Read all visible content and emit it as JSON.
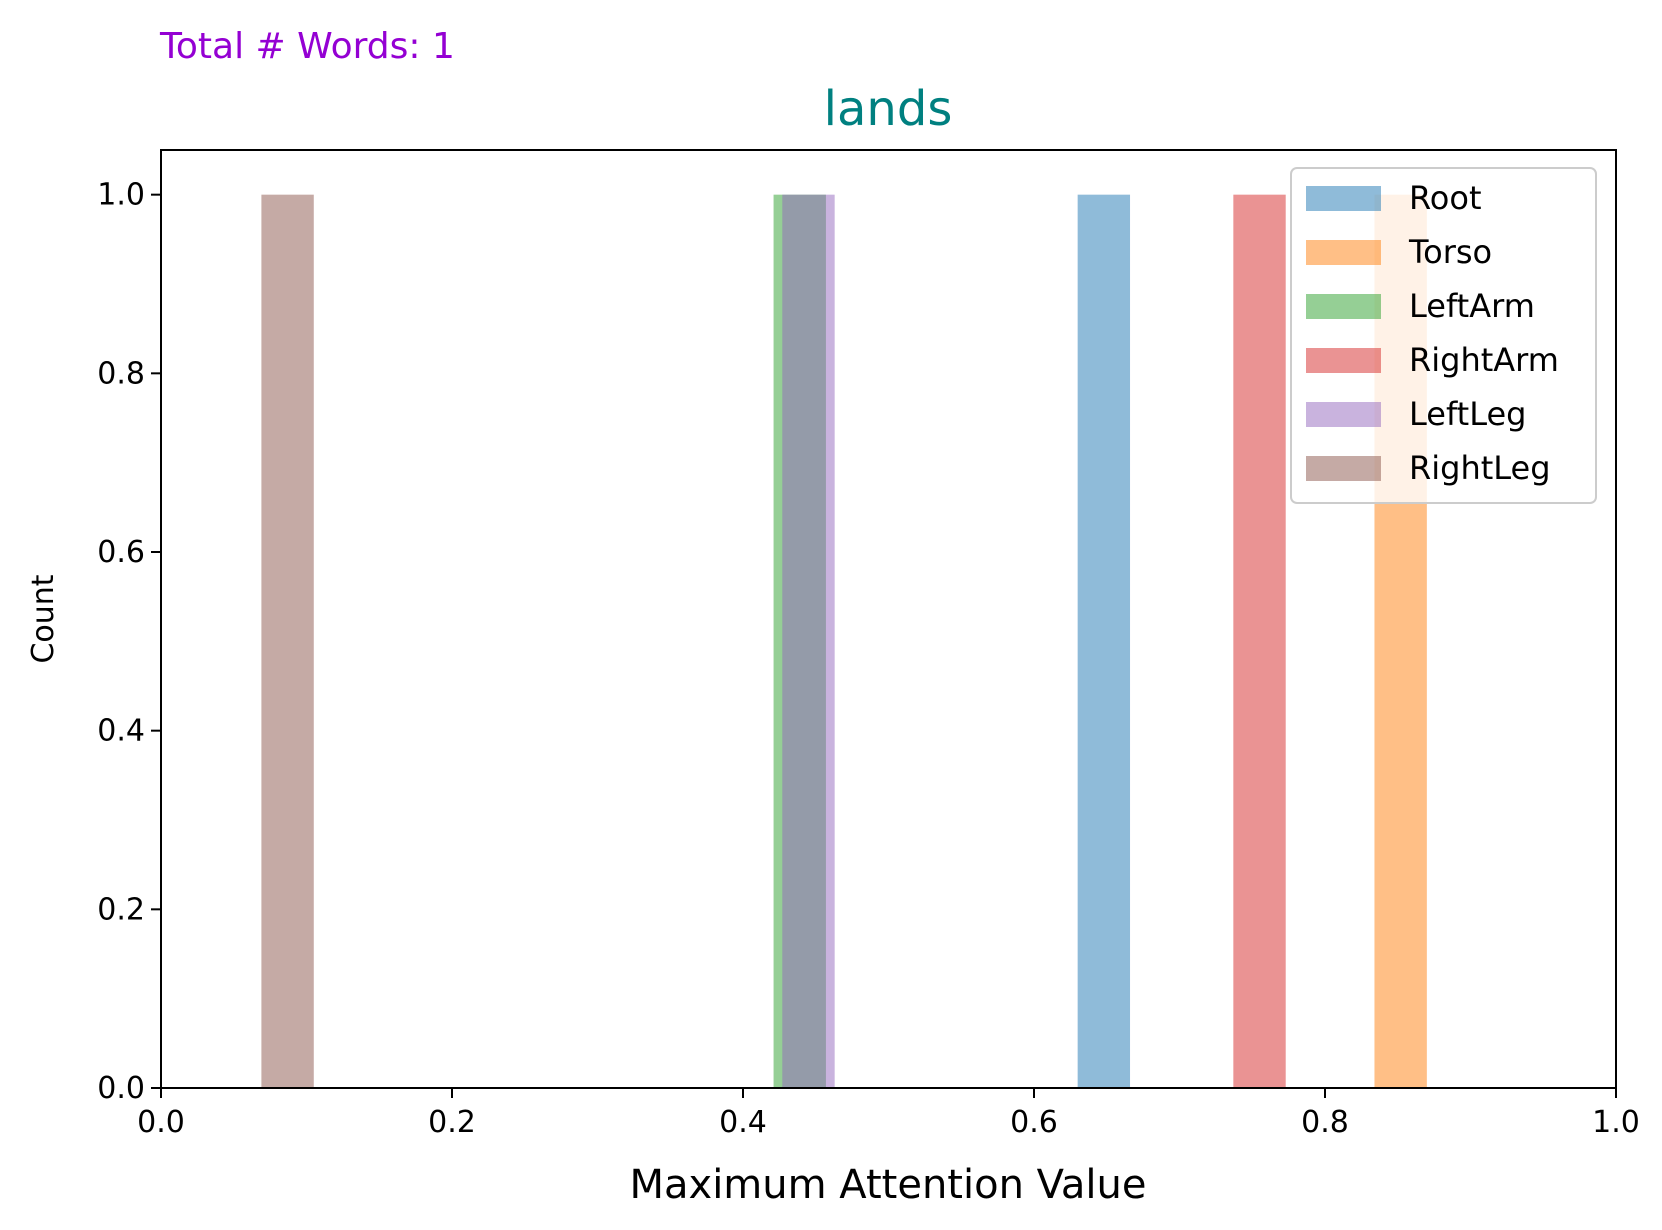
{
  "header_note": "Total # Words: 1",
  "colors": {
    "header_note": "#9400d3",
    "title": "#008080",
    "axis": "#000000"
  },
  "chart_data": {
    "type": "bar",
    "title": "lands",
    "xlabel": "Maximum Attention Value",
    "ylabel": "Count",
    "xlim": [
      0.0,
      1.0
    ],
    "ylim": [
      0.0,
      1.05
    ],
    "xticks": [
      "0.0",
      "0.2",
      "0.4",
      "0.6",
      "0.8",
      "1.0"
    ],
    "yticks": [
      "0.0",
      "0.2",
      "0.4",
      "0.6",
      "0.8",
      "1.0"
    ],
    "grid": false,
    "legend_position": "top-right",
    "bar_opacity": 0.5,
    "series": [
      {
        "name": "Root",
        "color": "#1f77b4",
        "bins": [
          {
            "x0": 0.63,
            "x1": 0.666,
            "count": 1
          }
        ]
      },
      {
        "name": "Torso",
        "color": "#ff7f0e",
        "bins": [
          {
            "x0": 0.834,
            "x1": 0.87,
            "count": 1
          }
        ]
      },
      {
        "name": "LeftArm",
        "color": "#2ca02c",
        "bins": [
          {
            "x0": 0.421,
            "x1": 0.457,
            "count": 1
          }
        ]
      },
      {
        "name": "RightArm",
        "color": "#d62728",
        "bins": [
          {
            "x0": 0.737,
            "x1": 0.773,
            "count": 1
          }
        ]
      },
      {
        "name": "LeftLeg",
        "color": "#9467bd",
        "bins": [
          {
            "x0": 0.427,
            "x1": 0.463,
            "count": 1
          }
        ]
      },
      {
        "name": "RightLeg",
        "color": "#8c564b",
        "bins": [
          {
            "x0": 0.069,
            "x1": 0.105,
            "count": 1
          }
        ]
      }
    ]
  }
}
